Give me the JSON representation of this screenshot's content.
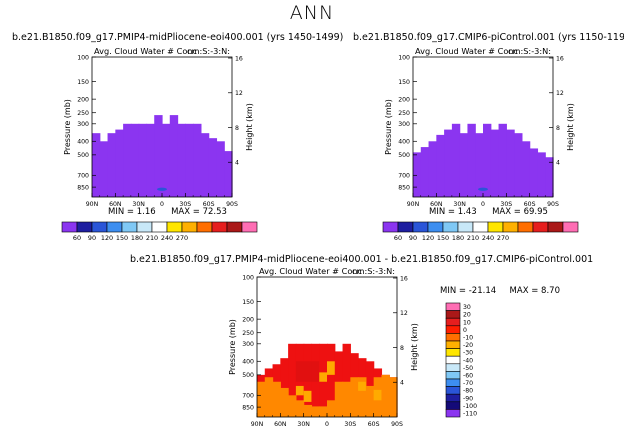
{
  "page_title": "ANN",
  "palette": {
    "purple": "#8b35f0",
    "red": "#ee1111",
    "orange": "#ff8800",
    "yellow_orange": "#ffaa00",
    "dark_red": "#bb1111"
  },
  "chart_data": [
    {
      "type": "heatmap",
      "title": "b.e21.B1850.f09_g17.PMIP4-midPliocene-eoi400.001 (yrs 1450-1499)",
      "subtitle": "Avg. Cloud Water # Conc",
      "units": "cm:S:-3:N:",
      "xlabel": "",
      "ylabel": "Pressure (mb)",
      "ylabel_right": "Height (km)",
      "x_ticks": [
        "90N",
        "60N",
        "30N",
        "0",
        "30S",
        "60S",
        "90S"
      ],
      "y_ticks": [
        "100",
        "150",
        "200",
        "250",
        "300",
        "400",
        "500",
        "700",
        "850"
      ],
      "y_ticks_right": [
        "16",
        "12",
        "8",
        "4"
      ],
      "min_label": "MIN =",
      "min_value": "1.16",
      "max_label": "MAX =",
      "max_value": "72.53",
      "colorbar_labels": [
        "60",
        "90",
        "120",
        "150",
        "180",
        "210",
        "240",
        "270"
      ],
      "colorbar_colors": [
        "#8b35f0",
        "#1e1ea0",
        "#2a55d8",
        "#3d8ef0",
        "#7fc8f5",
        "#c8e8f8",
        "#ffffff",
        "#ffe600",
        "#ffb000",
        "#ff6e00",
        "#e61e1e",
        "#aa1818",
        "#ff6eb4"
      ],
      "cloud_top_profile_mb": [
        350,
        400,
        350,
        330,
        300,
        300,
        300,
        300,
        260,
        300,
        260,
        300,
        300,
        300,
        350,
        380,
        400,
        470
      ]
    },
    {
      "type": "heatmap",
      "title": "b.e21.B1850.f09_g17.CMIP6-piControl.001 (yrs 1150-1199)",
      "subtitle": "Avg. Cloud Water # Conc",
      "units": "cm:S:-3:N:",
      "xlabel": "",
      "ylabel": "Pressure (mb)",
      "ylabel_right": "Height (km)",
      "x_ticks": [
        "90N",
        "60N",
        "30N",
        "0",
        "30S",
        "60S",
        "90S"
      ],
      "y_ticks": [
        "100",
        "150",
        "200",
        "250",
        "300",
        "400",
        "500",
        "700",
        "850"
      ],
      "y_ticks_right": [
        "16",
        "12",
        "8",
        "4"
      ],
      "min_label": "MIN =",
      "min_value": "1.43",
      "max_label": "MAX =",
      "max_value": "69.95",
      "colorbar_labels": [
        "60",
        "90",
        "120",
        "150",
        "180",
        "210",
        "240",
        "270"
      ],
      "colorbar_colors": [
        "#8b35f0",
        "#1e1ea0",
        "#2a55d8",
        "#3d8ef0",
        "#7fc8f5",
        "#c8e8f8",
        "#ffffff",
        "#ffe600",
        "#ffb000",
        "#ff6e00",
        "#e61e1e",
        "#aa1818",
        "#ff6eb4"
      ],
      "cloud_top_profile_mb": [
        480,
        440,
        400,
        360,
        330,
        300,
        350,
        300,
        350,
        300,
        330,
        300,
        330,
        350,
        400,
        450,
        480,
        520
      ]
    },
    {
      "type": "heatmap",
      "title": "b.e21.B1850.f09_g17.PMIP4-midPliocene-eoi400.001 - b.e21.B1850.f09_g17.CMIP6-piControl.001",
      "subtitle": "Avg. Cloud Water # Conc",
      "units": "cm:S:-3:N:",
      "xlabel": "",
      "ylabel": "Pressure (mb)",
      "ylabel_right": "Height (km)",
      "x_ticks": [
        "90N",
        "60N",
        "30N",
        "0",
        "30S",
        "60S",
        "90S"
      ],
      "y_ticks": [
        "100",
        "150",
        "200",
        "250",
        "300",
        "400",
        "500",
        "700",
        "850"
      ],
      "y_ticks_right": [
        "16",
        "12",
        "8",
        "4"
      ],
      "min_label": "MIN =",
      "min_value": "-21.14",
      "max_label": "MAX =",
      "max_value": "8.70",
      "colorbar_labels": [
        "30",
        "20",
        "10",
        "0",
        "-10",
        "-20",
        "-30",
        "-40",
        "-50",
        "-60",
        "-70",
        "-80",
        "-90",
        "-100",
        "-110"
      ],
      "colorbar_colors": [
        "#ff6eb4",
        "#aa1818",
        "#e61e1e",
        "#ff1e00",
        "#ff6e00",
        "#ffb000",
        "#ffe600",
        "#ffffff",
        "#c8e8f8",
        "#7fc8f5",
        "#3d8ef0",
        "#2a55d8",
        "#1e1ea0",
        "#140a78",
        "#8b35f0"
      ],
      "cloud_top_profile_mb": [
        500,
        450,
        420,
        380,
        300,
        300,
        300,
        300,
        300,
        300,
        340,
        300,
        350,
        380,
        400,
        450,
        500,
        520
      ]
    }
  ]
}
